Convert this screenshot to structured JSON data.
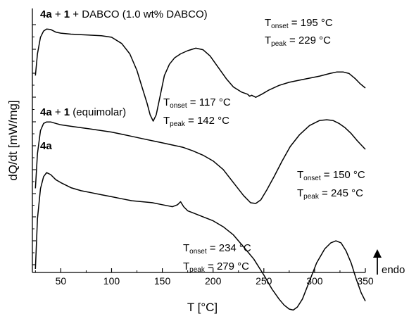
{
  "chart_data": {
    "type": "line",
    "xlabel": "T [°C]",
    "ylabel": "dQ/dt [mW/mg]",
    "xlim": [
      22,
      350
    ],
    "x_ticks": [
      50,
      100,
      150,
      200,
      250,
      300,
      350
    ],
    "y_ticks_labeled": false,
    "grid": false,
    "arrow_label": "endo",
    "series": [
      {
        "name": "4a + 1 + DABCO (1.0 wt% DABCO)",
        "label_parts": [
          {
            "t": "4a",
            "b": true
          },
          {
            "t": " + ",
            "b": false
          },
          {
            "t": "1",
            "b": true
          },
          {
            "t": " + DABCO (1.0 wt% DABCO)",
            "b": false
          }
        ],
        "x": [
          25,
          27,
          30,
          33,
          36,
          40,
          45,
          50,
          60,
          70,
          80,
          90,
          100,
          110,
          118,
          125,
          130,
          135,
          138,
          141,
          144,
          148,
          152,
          157,
          162,
          168,
          175,
          183,
          190,
          197,
          205,
          213,
          220,
          228,
          234,
          236,
          238,
          242,
          248,
          255,
          265,
          275,
          285,
          295,
          305,
          315,
          322,
          328,
          334,
          340,
          345,
          350
        ],
        "y": [
          4.4,
          6.5,
          8.1,
          8.7,
          8.9,
          8.85,
          8.6,
          8.5,
          8.4,
          8.35,
          8.3,
          8.25,
          8.1,
          7.5,
          6.5,
          4.9,
          3.3,
          1.7,
          0.6,
          0.0,
          0.6,
          2.5,
          4.4,
          5.5,
          6.1,
          6.5,
          6.8,
          7.05,
          6.9,
          6.3,
          5.2,
          4.1,
          3.3,
          2.8,
          2.6,
          2.4,
          2.5,
          2.3,
          2.6,
          3.0,
          3.45,
          3.75,
          3.95,
          4.15,
          4.35,
          4.6,
          4.75,
          4.75,
          4.6,
          4.1,
          3.6,
          3.2
        ]
      },
      {
        "name": "4a + 1 (equimolar)",
        "label_parts": [
          {
            "t": "4a",
            "b": true
          },
          {
            "t": " + ",
            "b": false
          },
          {
            "t": "1",
            "b": true
          },
          {
            "t": " (equimolar)",
            "b": false
          }
        ],
        "x": [
          25,
          27,
          30,
          33,
          36,
          40,
          45,
          50,
          60,
          70,
          80,
          90,
          100,
          110,
          120,
          130,
          140,
          150,
          160,
          170,
          180,
          190,
          200,
          210,
          220,
          230,
          237,
          242,
          247,
          253,
          260,
          268,
          276,
          285,
          295,
          305,
          312,
          318,
          324,
          330,
          336,
          342,
          350
        ],
        "y": [
          1.0,
          3.4,
          5.0,
          5.5,
          5.6,
          5.6,
          5.5,
          5.4,
          5.3,
          5.2,
          5.1,
          5.0,
          4.9,
          4.75,
          4.6,
          4.45,
          4.3,
          4.15,
          4.0,
          3.85,
          3.6,
          3.3,
          2.9,
          2.3,
          1.4,
          0.5,
          0.0,
          -0.05,
          0.2,
          0.9,
          1.8,
          2.9,
          3.9,
          4.7,
          5.35,
          5.7,
          5.75,
          5.7,
          5.5,
          5.2,
          4.8,
          4.3,
          3.7
        ]
      },
      {
        "name": "4a",
        "label_parts": [
          {
            "t": "4a",
            "b": true
          }
        ],
        "x": [
          25,
          27,
          30,
          33,
          36,
          40,
          45,
          50,
          60,
          70,
          80,
          90,
          100,
          110,
          120,
          130,
          140,
          150,
          155,
          160,
          165,
          168,
          171,
          175,
          180,
          190,
          200,
          210,
          220,
          230,
          240,
          250,
          258,
          265,
          270,
          275,
          279,
          283,
          288,
          295,
          302,
          310,
          316,
          321,
          326,
          331,
          336,
          341,
          346,
          350
        ],
        "y": [
          0.0,
          2.5,
          4.0,
          4.6,
          4.8,
          4.7,
          4.45,
          4.3,
          4.05,
          3.9,
          3.8,
          3.7,
          3.6,
          3.5,
          3.4,
          3.35,
          3.3,
          3.2,
          3.15,
          3.1,
          3.2,
          3.35,
          3.1,
          2.9,
          2.8,
          2.6,
          2.4,
          2.1,
          1.7,
          1.1,
          0.5,
          -0.3,
          -1.0,
          -1.5,
          -1.8,
          -2.0,
          -2.05,
          -1.9,
          -1.5,
          -0.6,
          0.3,
          1.0,
          1.3,
          1.4,
          1.3,
          0.9,
          0.3,
          -0.5,
          -1.2,
          -1.6
        ]
      }
    ],
    "annotations": [
      {
        "onset_value": "= 195 °C",
        "peak_value": "= 229 °C"
      },
      {
        "onset_value": "= 117 °C",
        "peak_value": "= 142 °C"
      },
      {
        "onset_value": "= 150 °C",
        "peak_value": "= 245 °C"
      },
      {
        "onset_value": "= 234 °C",
        "peak_value": "= 279 °C"
      }
    ],
    "annotation_symbol": "T",
    "onset_subscript": "onset",
    "peak_subscript": "peak"
  }
}
